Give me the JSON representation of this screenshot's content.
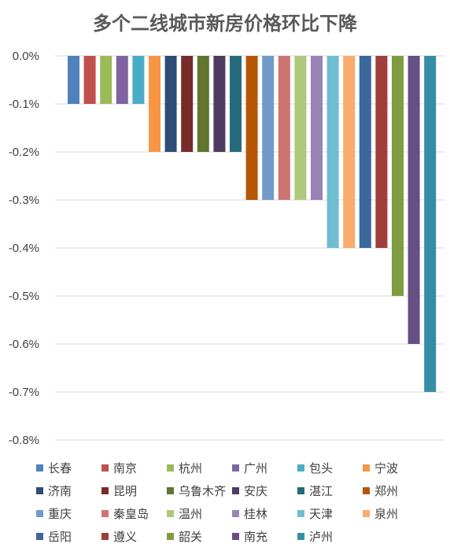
{
  "chart_data": {
    "type": "bar",
    "title": "多个二线城市新房价格环比下降",
    "xlabel": "",
    "ylabel": "",
    "ylim": [
      -0.8,
      0.0
    ],
    "yticks": [
      "0.0%",
      "-0.1%",
      "-0.2%",
      "-0.3%",
      "-0.4%",
      "-0.5%",
      "-0.6%",
      "-0.7%",
      "-0.8%"
    ],
    "grid": true,
    "legend_position": "bottom",
    "series": [
      {
        "name": "长春",
        "value": -0.1,
        "color": "#4F81BD"
      },
      {
        "name": "南京",
        "value": -0.1,
        "color": "#C0504D"
      },
      {
        "name": "杭州",
        "value": -0.1,
        "color": "#9BBB59"
      },
      {
        "name": "广州",
        "value": -0.1,
        "color": "#8064A2"
      },
      {
        "name": "包头",
        "value": -0.1,
        "color": "#4BACC6"
      },
      {
        "name": "宁波",
        "value": -0.2,
        "color": "#F79646"
      },
      {
        "name": "济南",
        "value": -0.2,
        "color": "#2C4D75"
      },
      {
        "name": "昆明",
        "value": -0.2,
        "color": "#772C2A"
      },
      {
        "name": "乌鲁木齐",
        "value": -0.2,
        "color": "#5F7530"
      },
      {
        "name": "安庆",
        "value": -0.2,
        "color": "#4D3B62"
      },
      {
        "name": "湛江",
        "value": -0.2,
        "color": "#276A7C"
      },
      {
        "name": "郑州",
        "value": -0.3,
        "color": "#B65708"
      },
      {
        "name": "重庆",
        "value": -0.3,
        "color": "#729ACA"
      },
      {
        "name": "秦皇岛",
        "value": -0.3,
        "color": "#CD7371"
      },
      {
        "name": "温州",
        "value": -0.3,
        "color": "#AFC97A"
      },
      {
        "name": "桂林",
        "value": -0.3,
        "color": "#9983B5"
      },
      {
        "name": "天津",
        "value": -0.4,
        "color": "#6FBDD1"
      },
      {
        "name": "泉州",
        "value": -0.4,
        "color": "#F9AB6B"
      },
      {
        "name": "岳阳",
        "value": -0.4,
        "color": "#3A679C"
      },
      {
        "name": "遵义",
        "value": -0.4,
        "color": "#9F3E3A"
      },
      {
        "name": "韶关",
        "value": -0.5,
        "color": "#7F9D40"
      },
      {
        "name": "南充",
        "value": -0.6,
        "color": "#664F83"
      },
      {
        "name": "泸州",
        "value": -0.7,
        "color": "#358EA6"
      }
    ]
  }
}
